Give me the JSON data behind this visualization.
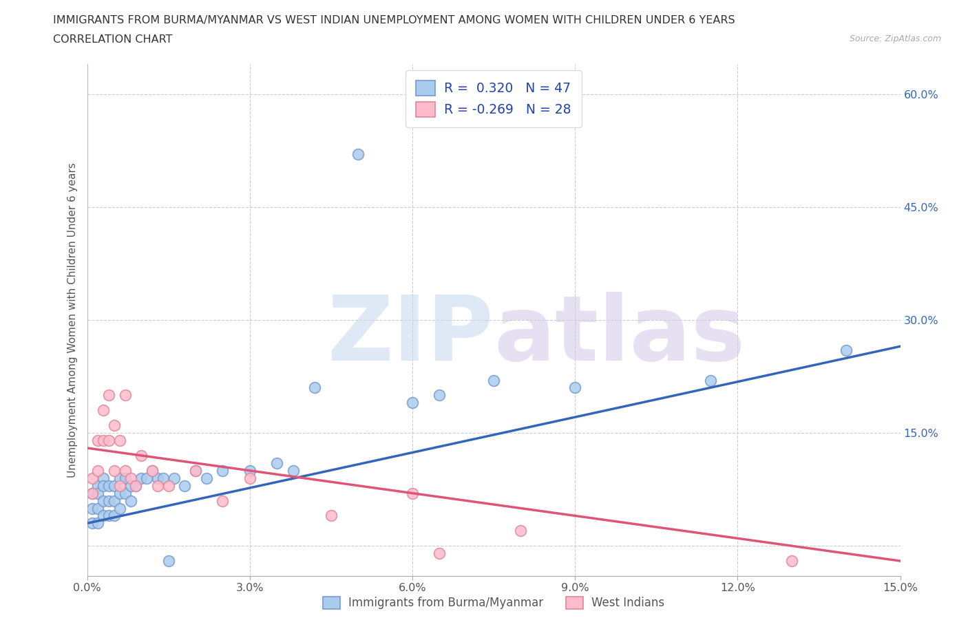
{
  "title_line1": "IMMIGRANTS FROM BURMA/MYANMAR VS WEST INDIAN UNEMPLOYMENT AMONG WOMEN WITH CHILDREN UNDER 6 YEARS",
  "title_line2": "CORRELATION CHART",
  "source": "Source: ZipAtlas.com",
  "ylabel": "Unemployment Among Women with Children Under 6 years",
  "xlim": [
    0.0,
    0.15
  ],
  "ylim": [
    -0.04,
    0.64
  ],
  "xticks": [
    0.0,
    0.03,
    0.06,
    0.09,
    0.12,
    0.15
  ],
  "xtick_labels": [
    "0.0%",
    "3.0%",
    "6.0%",
    "9.0%",
    "12.0%",
    "15.0%"
  ],
  "yticks": [
    0.0,
    0.15,
    0.3,
    0.45,
    0.6
  ],
  "ytick_labels": [
    "",
    "15.0%",
    "30.0%",
    "45.0%",
    "60.0%"
  ],
  "blue_R": 0.32,
  "blue_N": 47,
  "pink_R": -0.269,
  "pink_N": 28,
  "blue_color": "#aaccee",
  "blue_edge": "#7799cc",
  "pink_color": "#ffbbcc",
  "pink_edge": "#dd8899",
  "blue_line_color": "#3366bb",
  "pink_line_color": "#dd5577",
  "legend_label_blue": "Immigrants from Burma/Myanmar",
  "legend_label_pink": "West Indians",
  "blue_scatter_x": [
    0.001,
    0.001,
    0.001,
    0.002,
    0.002,
    0.002,
    0.002,
    0.003,
    0.003,
    0.003,
    0.003,
    0.004,
    0.004,
    0.004,
    0.005,
    0.005,
    0.005,
    0.006,
    0.006,
    0.006,
    0.007,
    0.007,
    0.008,
    0.008,
    0.009,
    0.01,
    0.011,
    0.012,
    0.013,
    0.014,
    0.015,
    0.016,
    0.018,
    0.02,
    0.022,
    0.025,
    0.03,
    0.035,
    0.038,
    0.042,
    0.05,
    0.06,
    0.065,
    0.075,
    0.09,
    0.115,
    0.14
  ],
  "blue_scatter_y": [
    0.07,
    0.05,
    0.03,
    0.08,
    0.07,
    0.05,
    0.03,
    0.09,
    0.08,
    0.06,
    0.04,
    0.08,
    0.06,
    0.04,
    0.08,
    0.06,
    0.04,
    0.09,
    0.07,
    0.05,
    0.09,
    0.07,
    0.08,
    0.06,
    0.08,
    0.09,
    0.09,
    0.1,
    0.09,
    0.09,
    -0.02,
    0.09,
    0.08,
    0.1,
    0.09,
    0.1,
    0.1,
    0.11,
    0.1,
    0.21,
    0.52,
    0.19,
    0.2,
    0.22,
    0.21,
    0.22,
    0.26
  ],
  "pink_scatter_x": [
    0.001,
    0.001,
    0.002,
    0.002,
    0.003,
    0.003,
    0.004,
    0.004,
    0.005,
    0.005,
    0.006,
    0.006,
    0.007,
    0.007,
    0.008,
    0.009,
    0.01,
    0.012,
    0.013,
    0.015,
    0.02,
    0.025,
    0.03,
    0.045,
    0.06,
    0.065,
    0.08,
    0.13
  ],
  "pink_scatter_y": [
    0.09,
    0.07,
    0.14,
    0.1,
    0.18,
    0.14,
    0.2,
    0.14,
    0.16,
    0.1,
    0.14,
    0.08,
    0.2,
    0.1,
    0.09,
    0.08,
    0.12,
    0.1,
    0.08,
    0.08,
    0.1,
    0.06,
    0.09,
    0.04,
    0.07,
    -0.01,
    0.02,
    -0.02
  ],
  "blue_trend_x": [
    0.0,
    0.15
  ],
  "blue_trend_y": [
    0.03,
    0.265
  ],
  "pink_trend_x": [
    0.0,
    0.15
  ],
  "pink_trend_y": [
    0.13,
    -0.02
  ],
  "background_color": "#ffffff",
  "grid_color": "#cccccc",
  "title_color": "#333333",
  "axis_label_color": "#555555",
  "yaxis_tick_color": "#3366bb"
}
